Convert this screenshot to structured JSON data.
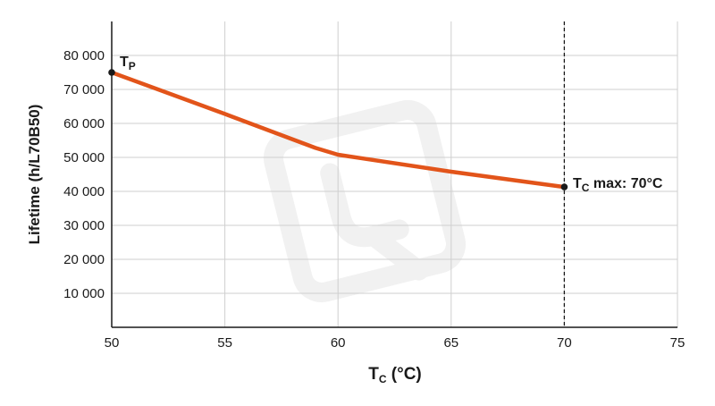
{
  "chart_data": {
    "type": "line",
    "xlabel": "T",
    "xlabel_sub": "C",
    "xlabel_unit": " (°C)",
    "ylabel": "Lifetime (h/L70B50)",
    "xlim": [
      50,
      75
    ],
    "ylim": [
      0,
      90000
    ],
    "x_ticks": [
      50,
      55,
      60,
      65,
      70,
      75
    ],
    "y_ticks": [
      10000,
      20000,
      30000,
      40000,
      50000,
      60000,
      70000,
      80000
    ],
    "y_tick_labels": [
      "10 000",
      "20 000",
      "30 000",
      "40 000",
      "50 000",
      "60 000",
      "70 000",
      "80 000"
    ],
    "grid": true,
    "series": [
      {
        "color": "#e2541a",
        "points": [
          {
            "x": 50,
            "y": 75000
          },
          {
            "x": 55,
            "y": 62800
          },
          {
            "x": 59,
            "y": 52800
          },
          {
            "x": 60,
            "y": 50800
          },
          {
            "x": 61,
            "y": 49800
          },
          {
            "x": 65,
            "y": 45800
          },
          {
            "x": 70,
            "y": 41300
          }
        ]
      }
    ],
    "markers": [
      {
        "x": 50,
        "y": 75000
      },
      {
        "x": 70,
        "y": 41300
      }
    ],
    "annotations": {
      "tp": {
        "main": "T",
        "sub": "P"
      },
      "tcmax": {
        "main": "T",
        "sub": "C",
        "rest": " max: 70°C"
      }
    },
    "reference_line": {
      "x": 70,
      "style": "dashed"
    },
    "colors": {
      "line": "#e2541a",
      "grid": "#cfcfcf",
      "axis": "#1a1a1a",
      "watermark": "#f1f1f1"
    }
  }
}
